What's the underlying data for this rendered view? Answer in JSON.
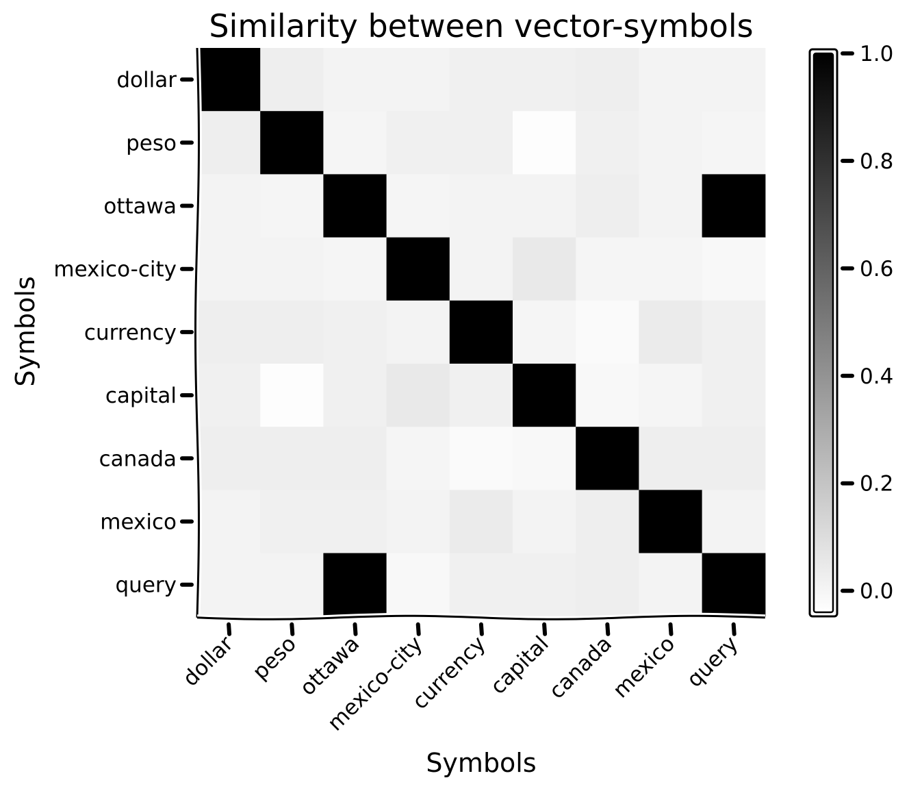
{
  "chart_data": {
    "type": "heatmap",
    "title": "Similarity between vector-symbols",
    "xlabel": "Symbols",
    "ylabel": "Symbols",
    "x_categories": [
      "dollar",
      "peso",
      "ottawa",
      "mexico-city",
      "currency",
      "capital",
      "canada",
      "mexico",
      "query"
    ],
    "y_categories": [
      "dollar",
      "peso",
      "ottawa",
      "mexico-city",
      "currency",
      "capital",
      "canada",
      "mexico",
      "query"
    ],
    "values": [
      [
        1.0,
        0.03,
        0.01,
        0.01,
        0.02,
        0.02,
        0.03,
        0.01,
        0.01
      ],
      [
        0.03,
        1.0,
        0.0,
        0.02,
        0.02,
        -0.03,
        0.02,
        0.01,
        0.0
      ],
      [
        0.01,
        0.0,
        1.0,
        0.0,
        0.01,
        0.01,
        0.03,
        0.01,
        1.0
      ],
      [
        0.01,
        0.01,
        0.0,
        1.0,
        0.01,
        0.05,
        0.0,
        0.0,
        -0.01
      ],
      [
        0.03,
        0.03,
        0.02,
        0.01,
        1.0,
        0.0,
        -0.02,
        0.04,
        0.02
      ],
      [
        0.02,
        -0.03,
        0.02,
        0.05,
        0.02,
        1.0,
        -0.01,
        0.0,
        0.02
      ],
      [
        0.03,
        0.03,
        0.03,
        0.0,
        -0.02,
        -0.01,
        1.0,
        0.03,
        0.03
      ],
      [
        0.01,
        0.02,
        0.02,
        0.01,
        0.04,
        0.01,
        0.03,
        1.0,
        0.01
      ],
      [
        0.01,
        0.01,
        1.0,
        -0.01,
        0.02,
        0.02,
        0.03,
        0.01,
        1.0
      ]
    ],
    "colorbar": {
      "vmin": -0.04,
      "vmax": 1.0,
      "ticks": [
        0.0,
        0.2,
        0.4,
        0.6,
        0.8,
        1.0
      ],
      "tick_labels": [
        "0.0",
        "0.2",
        "0.4",
        "0.6",
        "0.8",
        "1.0"
      ],
      "low_color": "#ffffff",
      "high_color": "#000000"
    },
    "grid": false,
    "colormap": "Greys"
  }
}
